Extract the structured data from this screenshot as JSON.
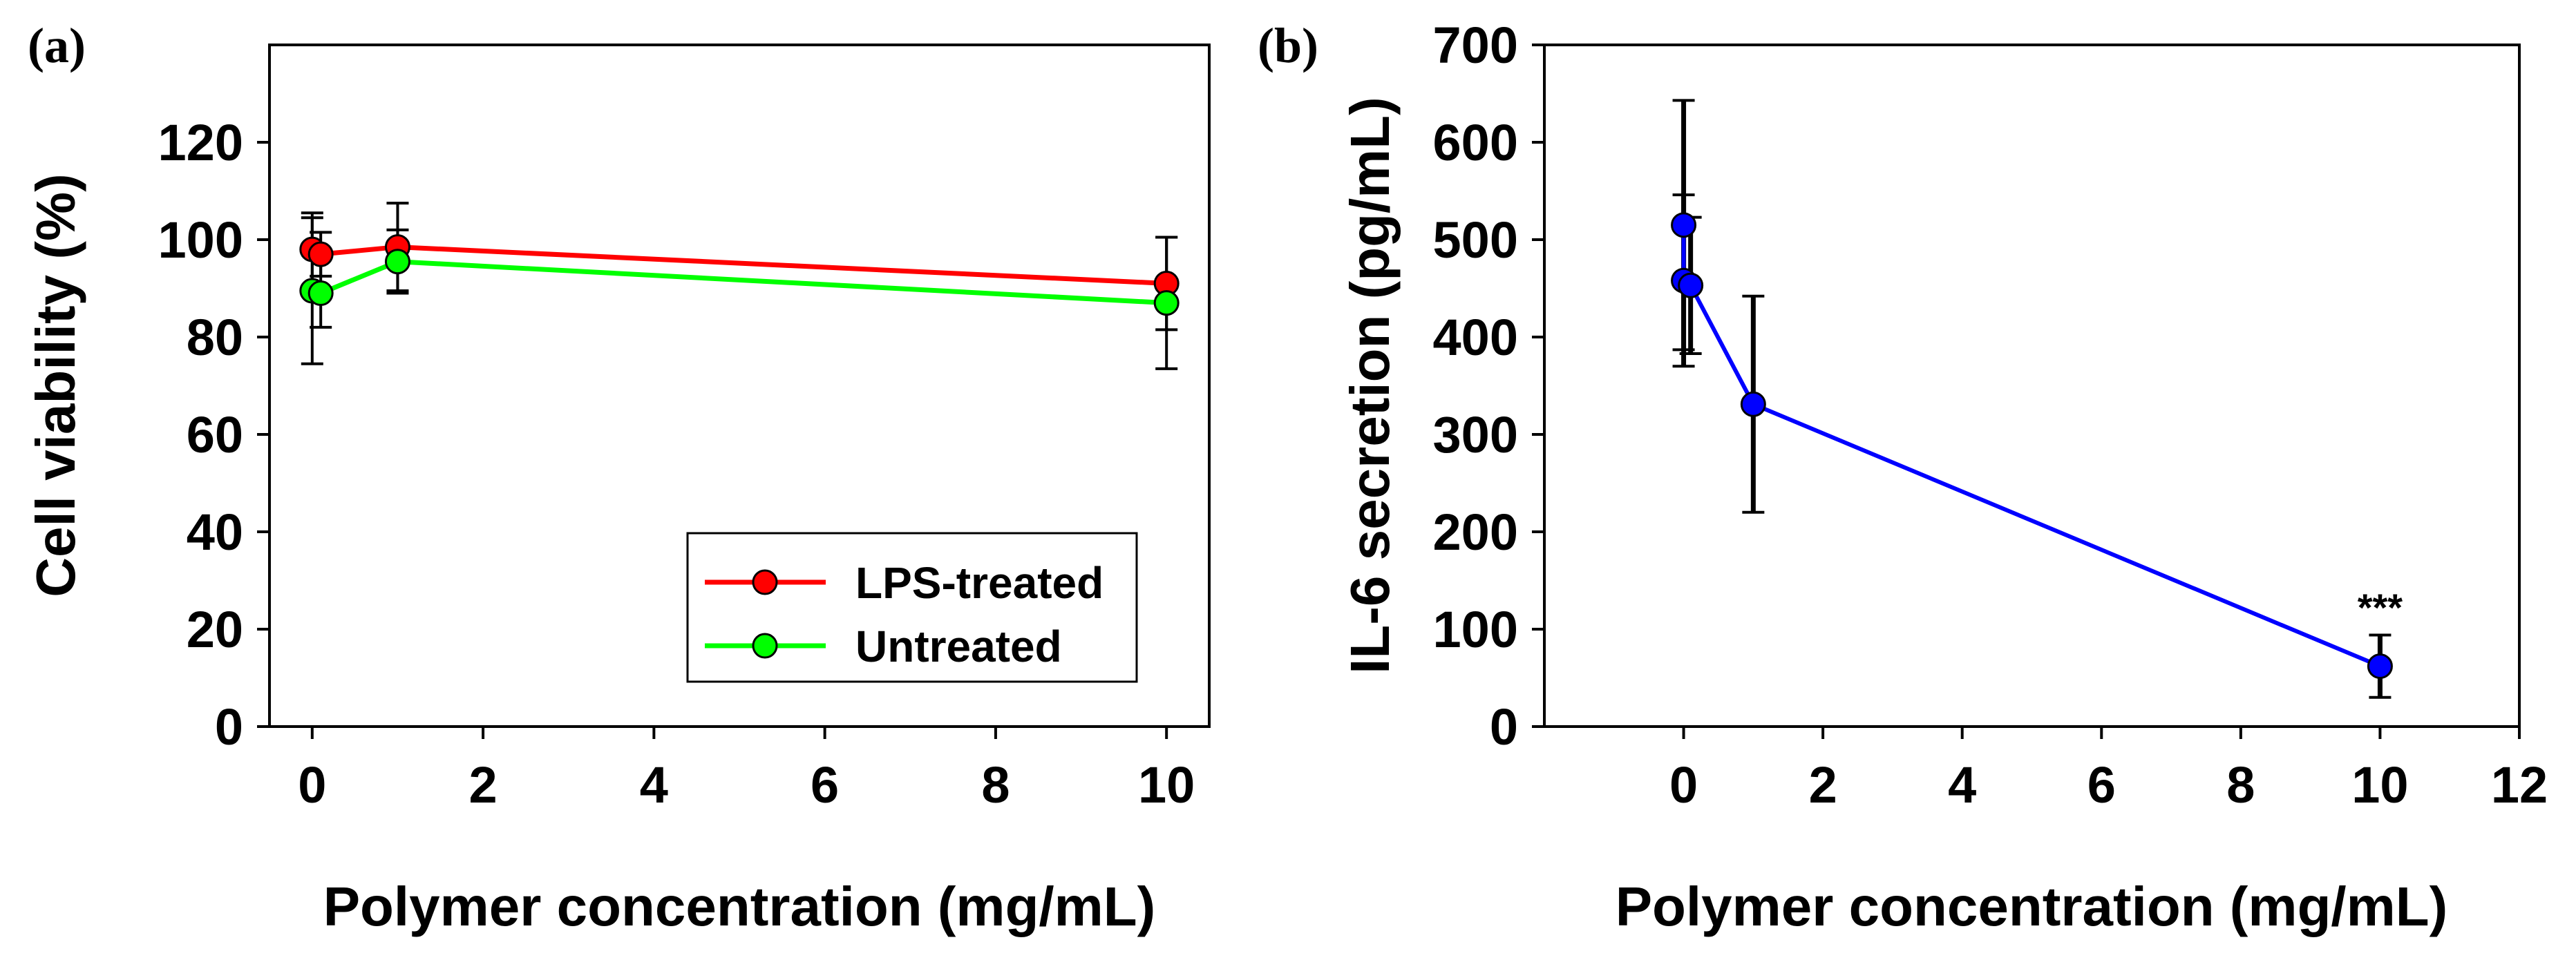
{
  "chart_data": [
    {
      "panel_label": "(a)",
      "type": "line",
      "title": "",
      "xlabel": "Polymer concentration (mg/mL)",
      "ylabel": "Cell viability (%)",
      "xlim": [
        -0.5,
        10.5
      ],
      "ylim": [
        0,
        140
      ],
      "xticks": [
        0,
        2,
        4,
        6,
        8,
        10
      ],
      "xtick_labels": [
        "0",
        "2",
        "4",
        "6",
        "8",
        "10"
      ],
      "yticks": [
        0,
        20,
        40,
        60,
        80,
        100,
        120
      ],
      "ytick_labels": [
        "0",
        "20",
        "40",
        "60",
        "80",
        "100",
        "120"
      ],
      "grid": false,
      "legend_position": "bottom-right",
      "series": [
        {
          "name": "LPS-treated",
          "color": "#ff0000",
          "x": [
            0,
            0.1,
            1,
            10
          ],
          "y": [
            98,
            97,
            98.5,
            91
          ],
          "error": [
            7.5,
            4.5,
            9,
            9.5
          ]
        },
        {
          "name": "Untreated",
          "color": "#00ff00",
          "x": [
            0,
            0.1,
            1,
            10
          ],
          "y": [
            89.5,
            89,
            95.5,
            87
          ],
          "error": [
            15,
            7,
            6.5,
            13.5
          ]
        }
      ]
    },
    {
      "panel_label": "(b)",
      "type": "line",
      "title": "",
      "xlabel": "Polymer concentration (mg/mL)",
      "ylabel": "IL-6 secretion (pg/mL)",
      "xlim": [
        -2,
        12
      ],
      "ylim": [
        0,
        700
      ],
      "xticks": [
        0,
        2,
        4,
        6,
        8,
        10,
        12
      ],
      "xtick_labels": [
        "0",
        "2",
        "4",
        "6",
        "8",
        "10",
        "12"
      ],
      "yticks": [
        0,
        100,
        200,
        300,
        400,
        500,
        600,
        700
      ],
      "ytick_labels": [
        "0",
        "100",
        "200",
        "300",
        "400",
        "500",
        "600",
        "700"
      ],
      "grid": false,
      "series": [
        {
          "name": "IL-6",
          "color": "#0000ff",
          "x": [
            0,
            0,
            0.1,
            1,
            10
          ],
          "y": [
            515,
            458,
            453,
            331,
            62
          ],
          "error": [
            128,
            88,
            70,
            111,
            32
          ]
        }
      ],
      "annotations": [
        {
          "text": "***",
          "x": 10,
          "y": 100
        }
      ]
    }
  ]
}
